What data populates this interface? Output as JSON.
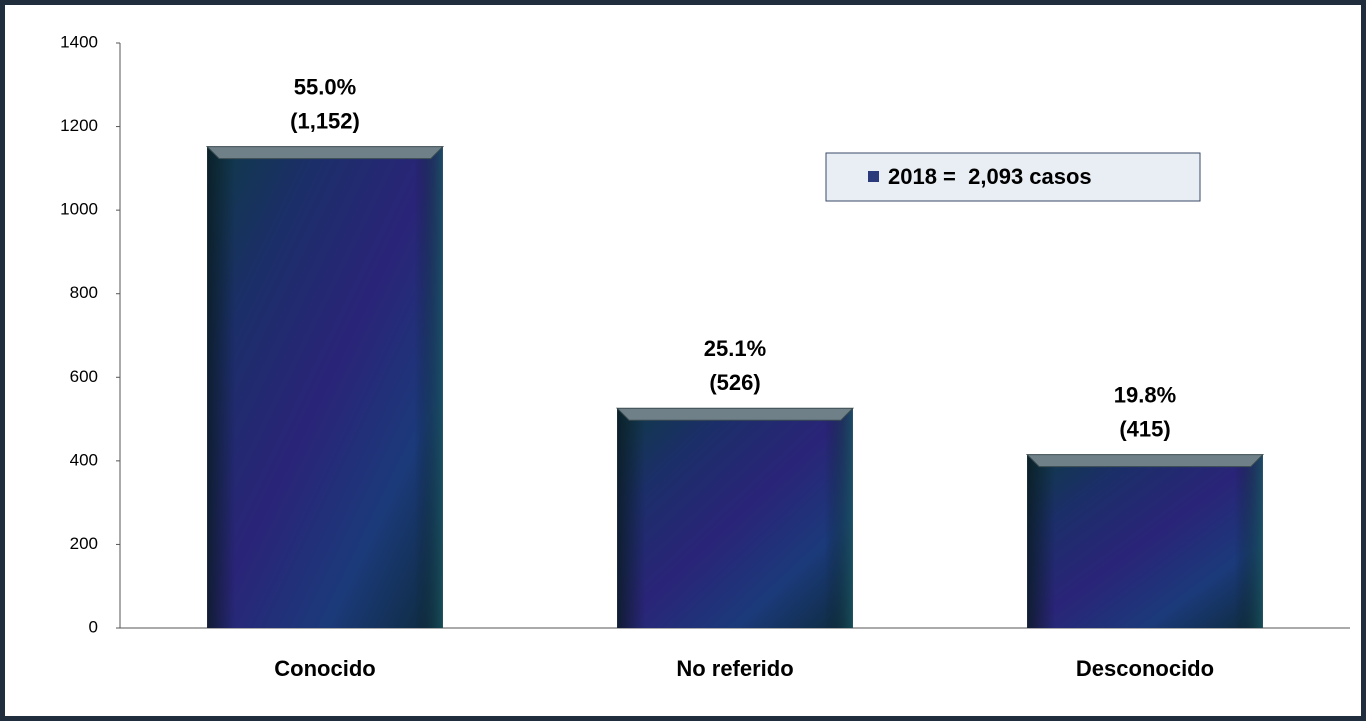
{
  "chart_data": {
    "type": "bar",
    "categories": [
      "Conocido",
      "No referido",
      "Desconocido"
    ],
    "values": [
      1152,
      526,
      415
    ],
    "value_labels": [
      "(1,152)",
      "(526)",
      "(415)"
    ],
    "share_labels": [
      "55.0%",
      "25.1%",
      "19.8%"
    ],
    "series_name": "2018 =  2,093 casos",
    "color": "#1e2f6e",
    "ylim": [
      0,
      1400
    ],
    "yticks": [
      0,
      200,
      400,
      600,
      800,
      1000,
      1200,
      1400
    ],
    "grid": false,
    "legend": "upper right"
  }
}
